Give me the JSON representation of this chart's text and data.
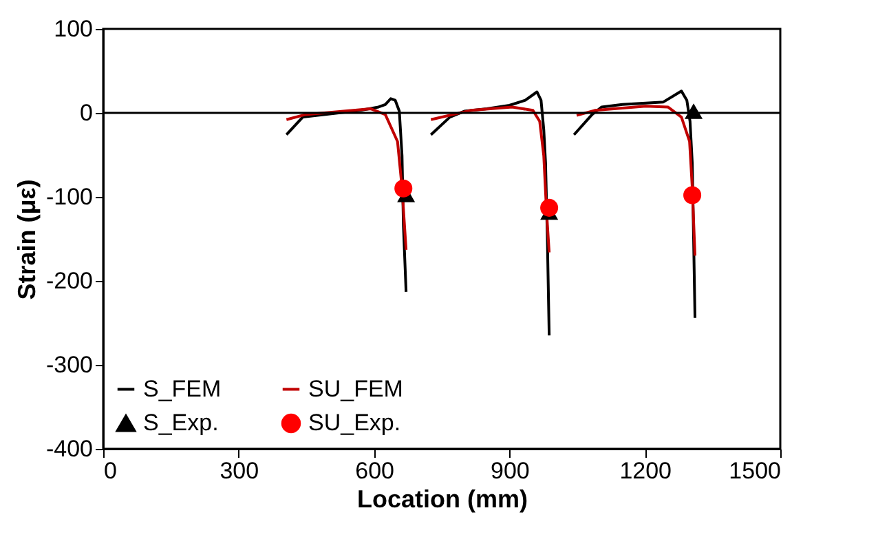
{
  "chart_data": {
    "type": "line",
    "xlabel": "Location (mm)",
    "ylabel": "Strain (με)",
    "xlim": [
      0,
      1500
    ],
    "xticks": [
      0,
      300,
      600,
      900,
      1200,
      1500
    ],
    "ylim": [
      -400,
      100
    ],
    "yticks": [
      -400,
      -300,
      -200,
      -100,
      0,
      100
    ],
    "grid": false,
    "legend": "bottom left",
    "ref_lines": [
      {
        "axis": "y",
        "value": 0,
        "color": "#000000"
      }
    ],
    "series": [
      {
        "name": "S_FEM",
        "color": "#000000",
        "marker": "none",
        "x": [
          406,
          442,
          570,
          610,
          625,
          637,
          647,
          656,
          662,
          665,
          671,
          null,
          726,
          768,
          800,
          850,
          900,
          935,
          961,
          970,
          976,
          980,
          984,
          988,
          null,
          1043,
          1083,
          1104,
          1150,
          1241,
          1281,
          1293,
          1300,
          1305,
          1308,
          1311
        ],
        "values": [
          -26,
          -5,
          3,
          7,
          10,
          17,
          15,
          2,
          -51,
          -133,
          -213,
          null,
          -26,
          -5,
          2,
          5,
          9,
          15,
          25,
          15,
          -20,
          -60,
          -150,
          -265,
          null,
          -26,
          -2,
          7,
          10,
          13,
          26,
          15,
          -10,
          -60,
          -150,
          -244
        ]
      },
      {
        "name": "SU_FEM",
        "color": "#c00000",
        "marker": "none",
        "x": [
          406,
          448,
          592,
          625,
          652,
          662,
          671,
          null,
          726,
          814,
          906,
          952,
          967,
          976,
          982,
          988,
          null,
          1049,
          1089,
          1202,
          1251,
          1281,
          1299,
          1305,
          1311
        ],
        "values": [
          -8,
          -2,
          5,
          -2,
          -34,
          -89,
          -163,
          null,
          -8,
          3,
          7,
          3,
          -10,
          -51,
          -116,
          -166,
          null,
          -3,
          3,
          8,
          7,
          -5,
          -34,
          -89,
          -170
        ]
      },
      {
        "name": "S_Exp.",
        "type": "scatter",
        "color": "#000000",
        "marker": "triangle",
        "x": [
          671,
          988,
          1308
        ],
        "values": [
          -97,
          -118,
          2
        ]
      },
      {
        "name": "SU_Exp.",
        "type": "scatter",
        "color": "#ff0000",
        "marker": "circle",
        "x": [
          665,
          988,
          1305
        ],
        "values": [
          -90,
          -113,
          -98
        ]
      }
    ]
  }
}
